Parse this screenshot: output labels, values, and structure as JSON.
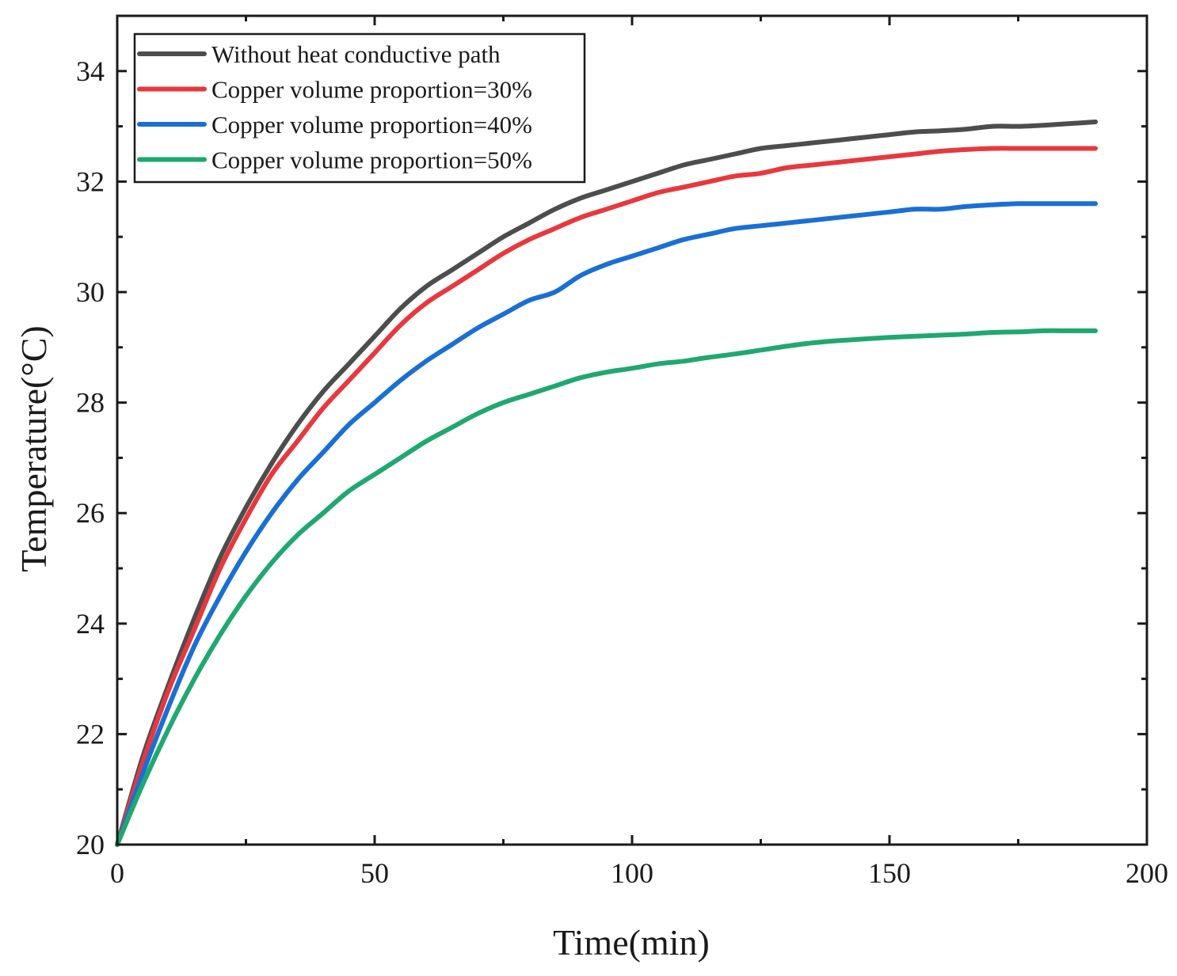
{
  "chart_data": {
    "type": "line",
    "title": "",
    "xlabel": "Time(min)",
    "ylabel": "Temperature(°C)",
    "xlim": [
      0,
      200
    ],
    "ylim": [
      20,
      35
    ],
    "xticks": [
      0,
      50,
      100,
      150,
      200
    ],
    "yticks": [
      20,
      22,
      24,
      26,
      28,
      30,
      32,
      34
    ],
    "grid": false,
    "legend_position": "top-left",
    "series": [
      {
        "name": "Without heat conductive path",
        "color": "#4d4d4d",
        "x": [
          0,
          5,
          10,
          15,
          20,
          25,
          30,
          35,
          40,
          45,
          50,
          55,
          60,
          65,
          70,
          75,
          80,
          85,
          90,
          95,
          100,
          105,
          110,
          115,
          120,
          125,
          130,
          135,
          140,
          145,
          150,
          155,
          160,
          165,
          170,
          175,
          180,
          185,
          190
        ],
        "y": [
          20,
          21.6,
          22.9,
          24.1,
          25.2,
          26.1,
          26.9,
          27.6,
          28.2,
          28.7,
          29.2,
          29.7,
          30.1,
          30.4,
          30.7,
          31.0,
          31.25,
          31.5,
          31.7,
          31.85,
          32.0,
          32.15,
          32.3,
          32.4,
          32.5,
          32.6,
          32.65,
          32.7,
          32.75,
          32.8,
          32.85,
          32.9,
          32.92,
          32.95,
          33.0,
          33.0,
          33.02,
          33.05,
          33.08
        ]
      },
      {
        "name": "Copper volume proportion=30%",
        "color": "#e8383d",
        "x": [
          0,
          5,
          10,
          15,
          20,
          25,
          30,
          35,
          40,
          45,
          50,
          55,
          60,
          65,
          70,
          75,
          80,
          85,
          90,
          95,
          100,
          105,
          110,
          115,
          120,
          125,
          130,
          135,
          140,
          145,
          150,
          155,
          160,
          165,
          170,
          175,
          180,
          185,
          190
        ],
        "y": [
          20,
          21.5,
          22.8,
          23.9,
          25.0,
          25.9,
          26.7,
          27.3,
          27.9,
          28.4,
          28.9,
          29.4,
          29.8,
          30.1,
          30.4,
          30.7,
          30.95,
          31.15,
          31.35,
          31.5,
          31.65,
          31.8,
          31.9,
          32.0,
          32.1,
          32.15,
          32.25,
          32.3,
          32.35,
          32.4,
          32.45,
          32.5,
          32.55,
          32.58,
          32.6,
          32.6,
          32.6,
          32.6,
          32.6
        ]
      },
      {
        "name": "Copper volume proportion=40%",
        "color": "#1a6fd6",
        "x": [
          0,
          5,
          10,
          15,
          20,
          25,
          30,
          35,
          40,
          45,
          50,
          55,
          60,
          65,
          70,
          75,
          80,
          85,
          90,
          95,
          100,
          105,
          110,
          115,
          120,
          125,
          130,
          135,
          140,
          145,
          150,
          155,
          160,
          165,
          170,
          175,
          180,
          185,
          190
        ],
        "y": [
          20,
          21.3,
          22.5,
          23.6,
          24.5,
          25.3,
          26.0,
          26.6,
          27.1,
          27.6,
          28.0,
          28.4,
          28.75,
          29.05,
          29.35,
          29.6,
          29.85,
          30.0,
          30.3,
          30.5,
          30.65,
          30.8,
          30.95,
          31.05,
          31.15,
          31.2,
          31.25,
          31.3,
          31.35,
          31.4,
          31.45,
          31.5,
          31.5,
          31.55,
          31.58,
          31.6,
          31.6,
          31.6,
          31.6
        ]
      },
      {
        "name": "Copper volume proportion=50%",
        "color": "#1fa870",
        "x": [
          0,
          5,
          10,
          15,
          20,
          25,
          30,
          35,
          40,
          45,
          50,
          55,
          60,
          65,
          70,
          75,
          80,
          85,
          90,
          95,
          100,
          105,
          110,
          115,
          120,
          125,
          130,
          135,
          140,
          145,
          150,
          155,
          160,
          165,
          170,
          175,
          180,
          185,
          190
        ],
        "y": [
          20,
          21.1,
          22.1,
          23.0,
          23.8,
          24.5,
          25.1,
          25.6,
          26.0,
          26.4,
          26.7,
          27.0,
          27.3,
          27.55,
          27.8,
          28.0,
          28.15,
          28.3,
          28.45,
          28.55,
          28.62,
          28.7,
          28.75,
          28.82,
          28.88,
          28.95,
          29.02,
          29.08,
          29.12,
          29.15,
          29.18,
          29.2,
          29.22,
          29.24,
          29.27,
          29.28,
          29.3,
          29.3,
          29.3
        ]
      }
    ]
  }
}
